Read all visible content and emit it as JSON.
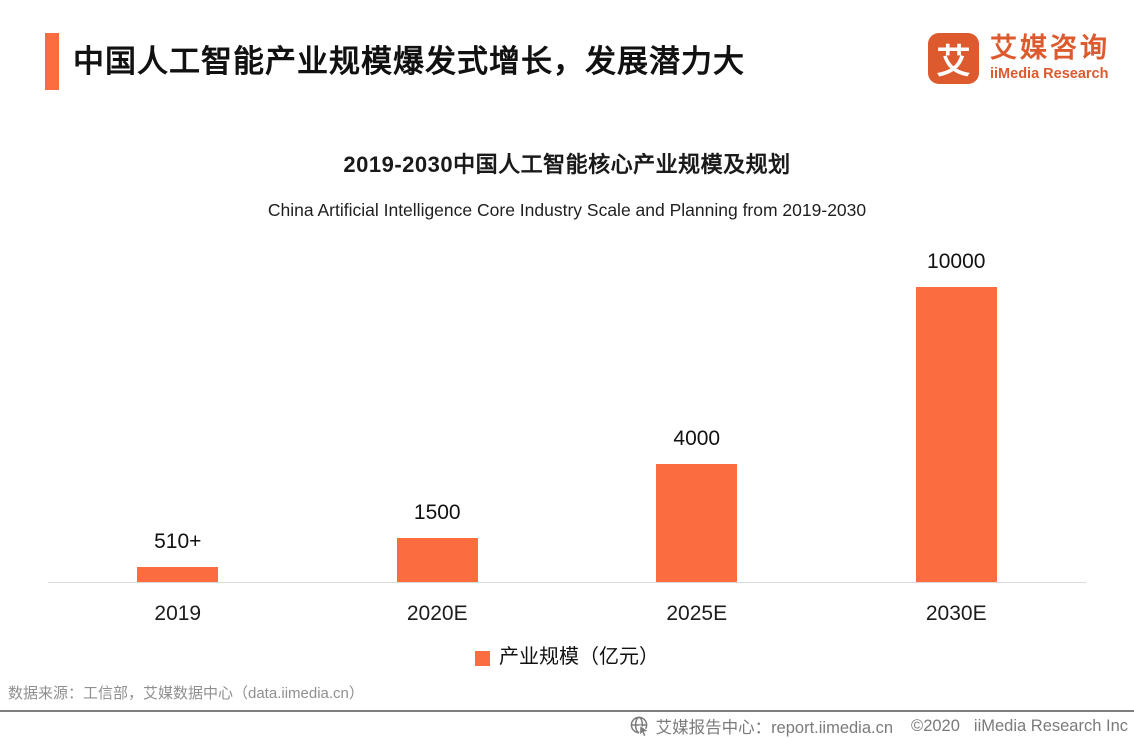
{
  "header": {
    "title": "中国人工智能产业规模爆发式增长，发展潜力大",
    "logo": {
      "symbol": "艾",
      "name_cn": "艾媒咨询",
      "name_en": "iiMedia Research"
    }
  },
  "chart": {
    "title": "2019-2030中国人工智能核心产业规模及规划",
    "subtitle": "China Artificial Intelligence Core Industry Scale and Planning from 2019-2030",
    "legend_label": "产业规模（亿元）"
  },
  "chart_data": {
    "type": "bar",
    "title": "2019-2030中国人工智能核心产业规模及规划",
    "subtitle": "China Artificial Intelligence Core Industry Scale and Planning from 2019-2030",
    "categories": [
      "2019",
      "2020E",
      "2025E",
      "2030E"
    ],
    "values": [
      510,
      1500,
      4000,
      10000
    ],
    "value_labels": [
      "510+",
      "1500",
      "4000",
      "10000"
    ],
    "series_name": "产业规模（亿元）",
    "xlabel": "",
    "ylabel": "产业规模（亿元）",
    "ylim": [
      0,
      10000
    ],
    "grid": false,
    "legend_position": "bottom",
    "bar_color": "#FB6D40"
  },
  "footer": {
    "source": "数据来源：工信部，艾媒数据中心（data.iimedia.cn）",
    "report_center": "艾媒报告中心：report.iimedia.cn",
    "copyright": "©2020",
    "company": "iiMedia Research Inc"
  },
  "colors": {
    "accent": "#FB6D40",
    "bar": "#FB6D40",
    "logo": "#DD5A2E",
    "axis_line": "#D9D9D9",
    "footer_line": "#7F7F7F",
    "source_text": "#8F8F8F",
    "footer_text": "#7B7B7B"
  }
}
